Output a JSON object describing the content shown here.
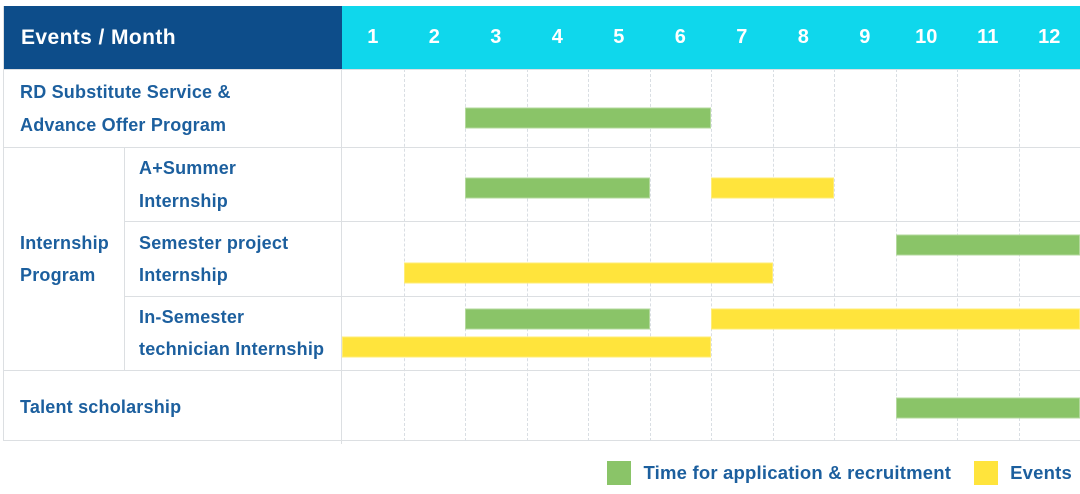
{
  "colors": {
    "header_navy": "#0d4d8a",
    "month_cyan": "#0fd7ec",
    "application_green": "#8ac468",
    "event_yellow": "#ffe43c",
    "label_blue": "#1c5f9e",
    "gridline": "#d9dee3",
    "border": "#dcdfe2"
  },
  "chart_data": {
    "type": "gantt",
    "title": "Events / Month",
    "x": {
      "unit": "month",
      "min": 1,
      "max": 12,
      "ticks": [
        "1",
        "2",
        "3",
        "4",
        "5",
        "6",
        "7",
        "8",
        "9",
        "10",
        "11",
        "12"
      ]
    },
    "grid": "dashed-vertical-month-lines",
    "legend_position": "bottom-right",
    "bar_kinds": {
      "application": {
        "label": "Time for application & recruitment",
        "color": "#8ac468"
      },
      "event": {
        "label": "Events",
        "color": "#ffe43c"
      }
    },
    "rows": [
      {
        "label": "RD Substitute Service &\nAdvance Offer Program",
        "lanes": 1,
        "bars": [
          {
            "kind": "application",
            "start": 3,
            "end": 6,
            "lane": 0
          }
        ]
      },
      {
        "group_label": "Internship\nProgram",
        "children": [
          {
            "label": "A+Summer\nInternship",
            "lanes": 1,
            "bars": [
              {
                "kind": "application",
                "start": 3,
                "end": 5,
                "lane": 0
              },
              {
                "kind": "event",
                "start": 7,
                "end": 8,
                "lane": 0
              }
            ]
          },
          {
            "label": "Semester project\nInternship",
            "lanes": 2,
            "bars": [
              {
                "kind": "application",
                "start": 10,
                "end": 12,
                "lane": 0
              },
              {
                "kind": "event",
                "start": 2,
                "end": 7,
                "lane": 1
              }
            ]
          },
          {
            "label": "In-Semester\ntechnician Internship",
            "lanes": 2,
            "bars": [
              {
                "kind": "application",
                "start": 3,
                "end": 5,
                "lane": 0
              },
              {
                "kind": "event",
                "start": 7,
                "end": 12,
                "lane": 0
              },
              {
                "kind": "event",
                "start": 1,
                "end": 6,
                "lane": 1
              }
            ]
          }
        ]
      },
      {
        "label": "Talent scholarship",
        "lanes": 1,
        "bars": [
          {
            "kind": "application",
            "start": 10,
            "end": 12,
            "lane": 0
          }
        ]
      }
    ]
  }
}
